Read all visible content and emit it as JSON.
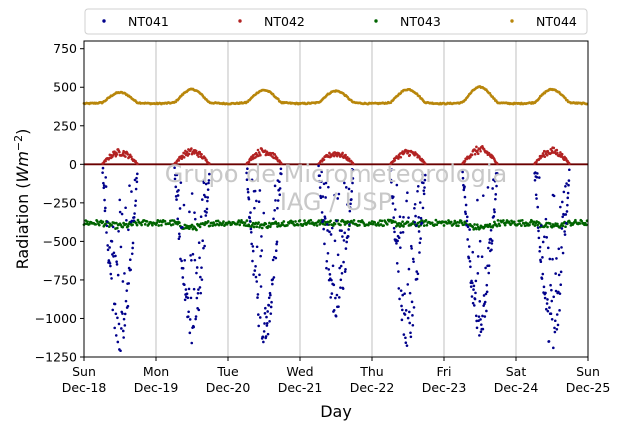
{
  "watermark": {
    "line1": "Grupo de Micrometeorologia",
    "line2": "IAG / USP"
  },
  "chart_data": {
    "type": "scatter",
    "xlabel": "Day",
    "ylabel_prefix": "Radiation (",
    "ylabel_unit": "Wm",
    "ylabel_exp": "−2",
    "ylabel_suffix": ")",
    "ylim": [
      -1250,
      800
    ],
    "yticks": [
      -1250,
      -1000,
      -750,
      -500,
      -250,
      0,
      250,
      500,
      750
    ],
    "ytick_labels": [
      "−1250",
      "−1000",
      "−750",
      "−500",
      "−250",
      "0",
      "250",
      "500",
      "750"
    ],
    "xlim": [
      "2016-12-18",
      "2016-12-25"
    ],
    "xticks": [
      {
        "day": "Sun",
        "date": "Dec-18"
      },
      {
        "day": "Mon",
        "date": "Dec-19"
      },
      {
        "day": "Tue",
        "date": "Dec-20"
      },
      {
        "day": "Wed",
        "date": "Dec-21"
      },
      {
        "day": "Thu",
        "date": "Dec-22"
      },
      {
        "day": "Fri",
        "date": "Dec-23"
      },
      {
        "day": "Sat",
        "date": "Dec-24"
      },
      {
        "day": "Sun",
        "date": "Dec-25"
      }
    ],
    "grid": "vertical",
    "legend_position": "top",
    "series": [
      {
        "name": "NT041",
        "color": "#00008b",
        "night_level": 0,
        "daily_peak": [
          -1220,
          -1180,
          -1200,
          -1020,
          -1190,
          -1130,
          -1210
        ]
      },
      {
        "name": "NT042",
        "color": "#b22222",
        "night_level": 0,
        "daily_peak": [
          100,
          105,
          110,
          90,
          100,
          120,
          110
        ]
      },
      {
        "name": "NT043",
        "color": "#006400",
        "night_level": -380,
        "daily_peak": [
          -400,
          -410,
          -395,
          -380,
          -390,
          -410,
          -400
        ]
      },
      {
        "name": "NT044",
        "color": "#b8860b",
        "night_level": 400,
        "daily_peak": [
          460,
          480,
          475,
          470,
          480,
          495,
          480
        ]
      }
    ]
  }
}
